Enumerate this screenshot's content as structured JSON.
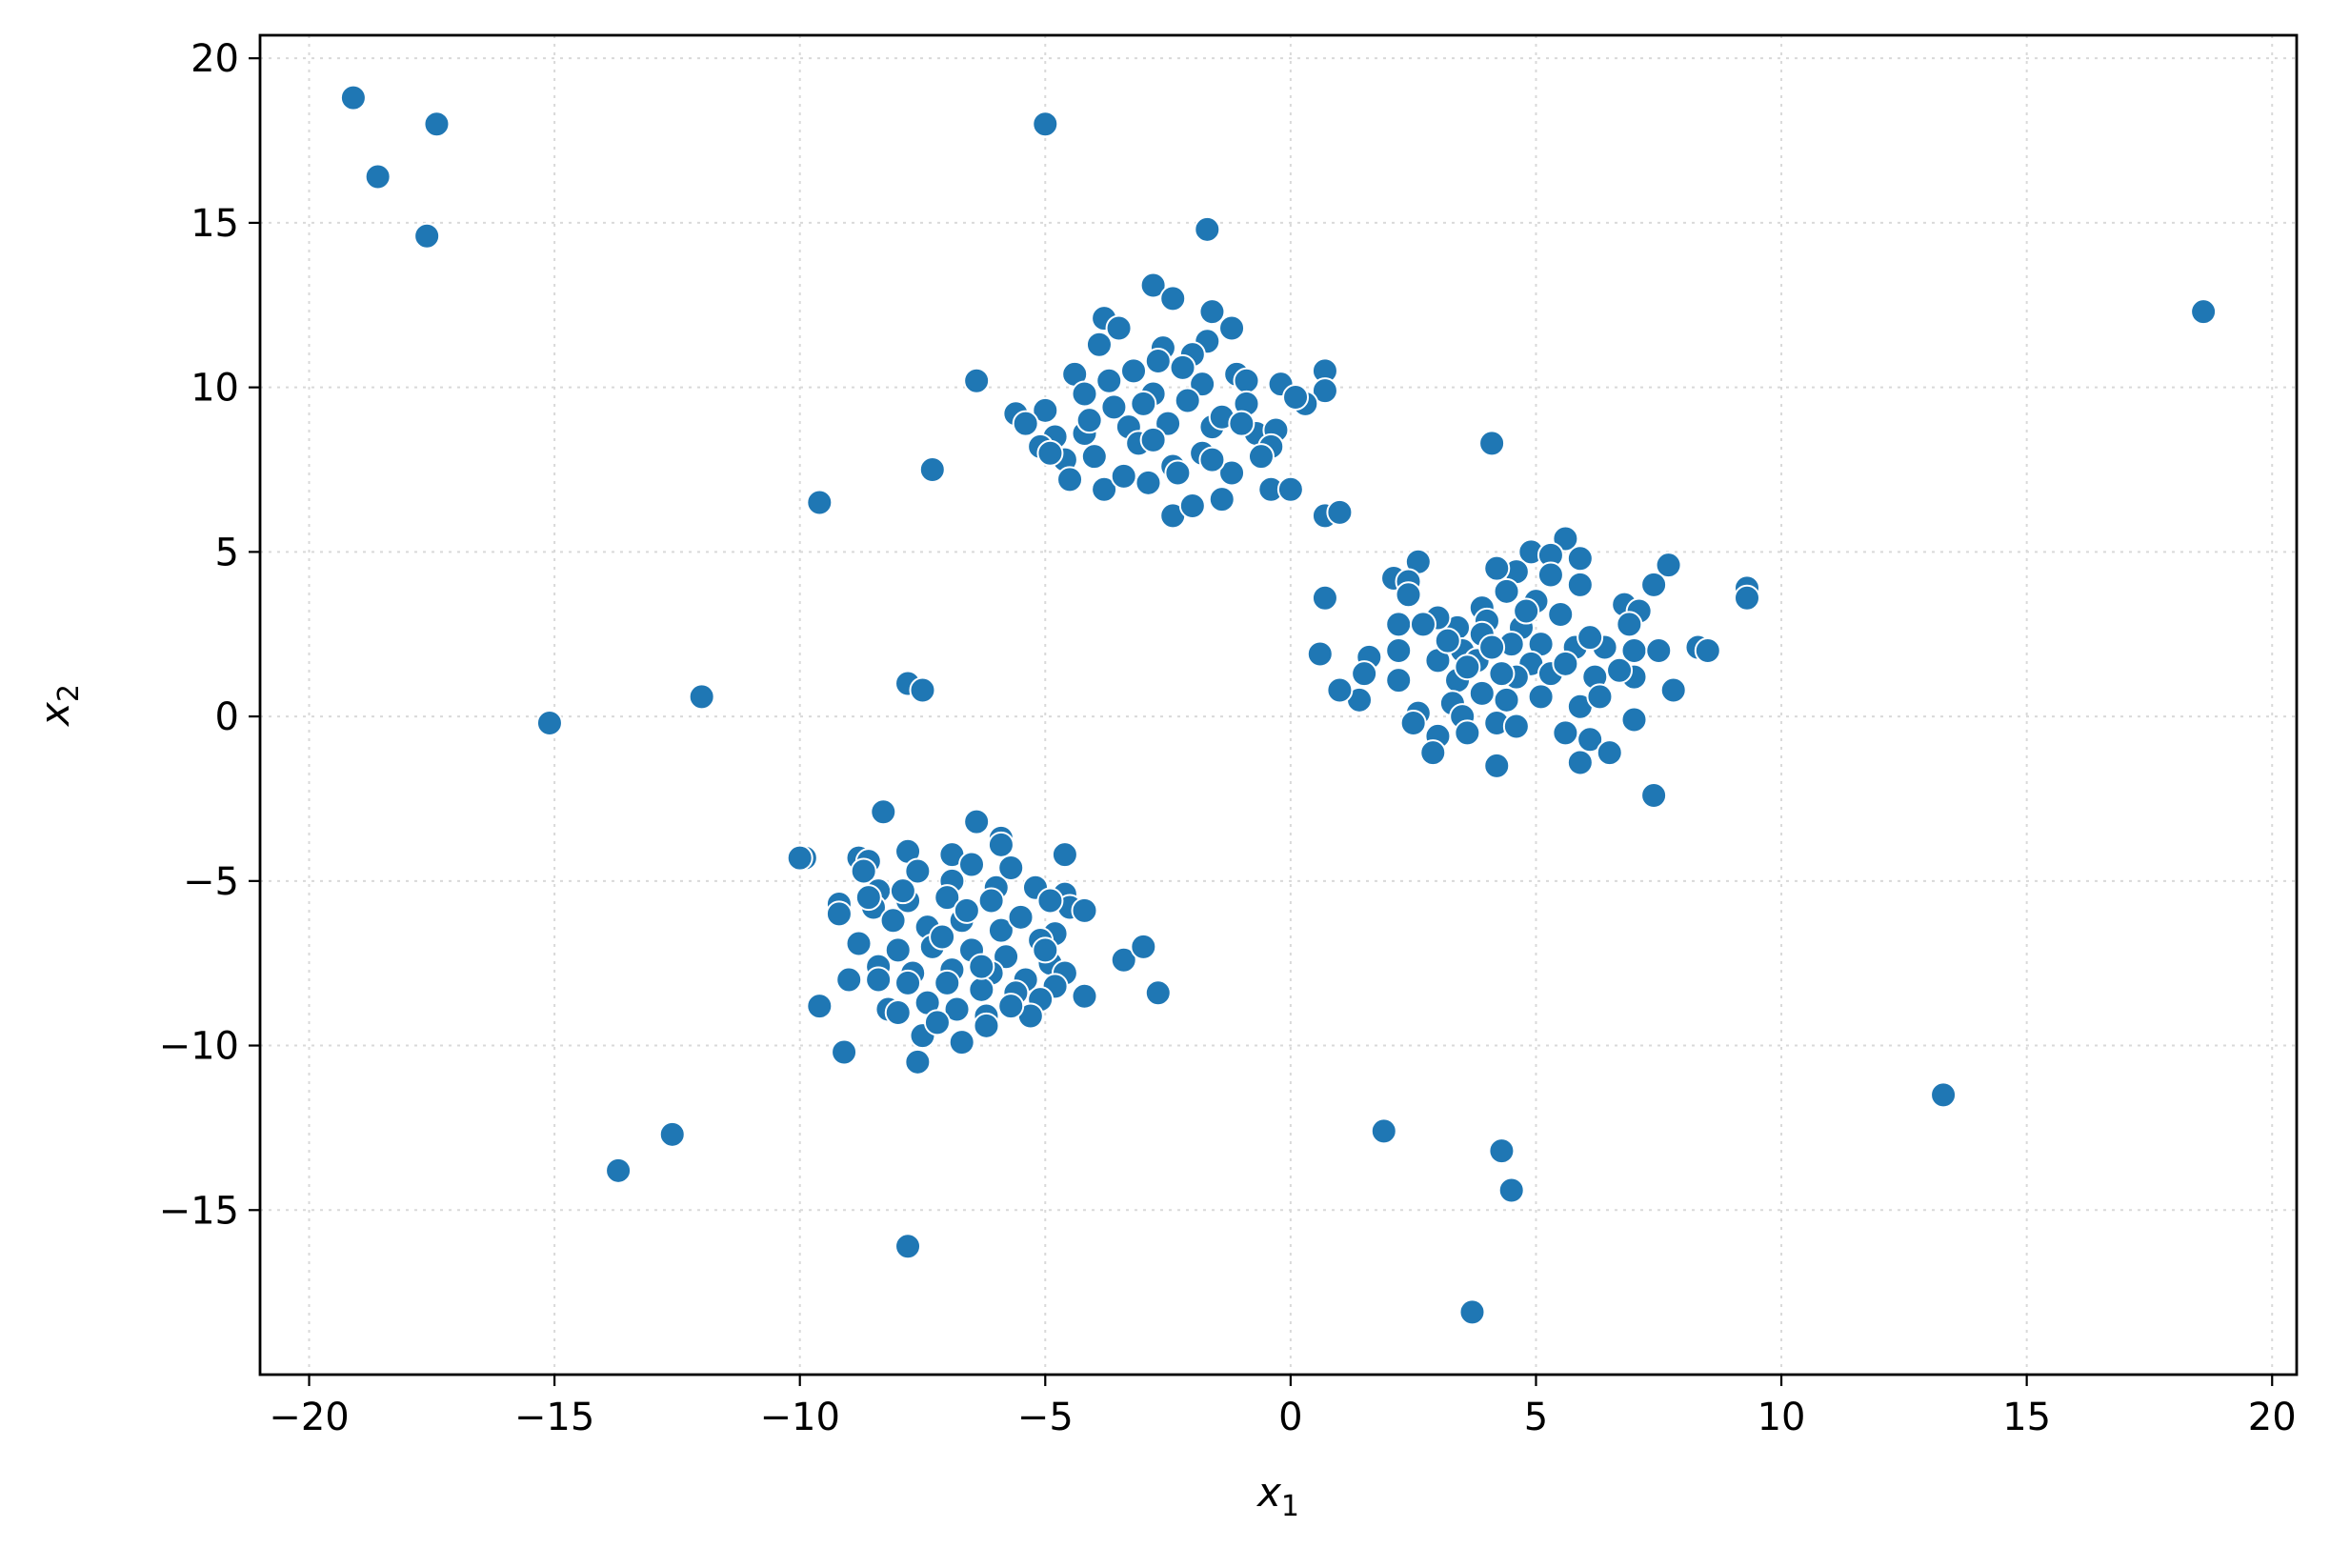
{
  "chart_data": {
    "type": "scatter",
    "title": "",
    "xlabel": {
      "base": "x",
      "sub": "1"
    },
    "ylabel": {
      "base": "x",
      "sub": "2"
    },
    "xlim": [
      -21,
      20.5
    ],
    "ylim": [
      -20,
      20.7
    ],
    "xticks": [
      -20,
      -15,
      -10,
      -5,
      0,
      5,
      10,
      15,
      20
    ],
    "yticks": [
      -15,
      -10,
      -5,
      0,
      5,
      10,
      15,
      20
    ],
    "xtick_labels": [
      "−20",
      "−15",
      "−10",
      "−5",
      "0",
      "5",
      "10",
      "15",
      "20"
    ],
    "ytick_labels": [
      "−15",
      "−10",
      "−5",
      "0",
      "5",
      "10",
      "15",
      "20"
    ],
    "grid": true,
    "marker_color": "#1f77b4",
    "points": [
      [
        -19.1,
        18.8
      ],
      [
        -18.6,
        16.4
      ],
      [
        -17.4,
        18.0
      ],
      [
        -17.6,
        14.6
      ],
      [
        -5.0,
        18.0
      ],
      [
        -1.7,
        14.8
      ],
      [
        18.6,
        12.3
      ],
      [
        -6.4,
        10.2
      ],
      [
        -9.6,
        6.5
      ],
      [
        -7.3,
        7.5
      ],
      [
        4.1,
        8.3
      ],
      [
        -15.1,
        -0.2
      ],
      [
        -12.0,
        0.6
      ],
      [
        -7.8,
        1.0
      ],
      [
        -7.5,
        0.8
      ],
      [
        -9.9,
        -4.3
      ],
      [
        -10.0,
        -4.3
      ],
      [
        -9.6,
        -8.8
      ],
      [
        -9.1,
        -10.2
      ],
      [
        -7.6,
        -10.5
      ],
      [
        -7.8,
        -16.1
      ],
      [
        -3.4,
        -7.4
      ],
      [
        -3.0,
        -7.0
      ],
      [
        -2.7,
        -8.4
      ],
      [
        -4.2,
        -8.5
      ],
      [
        -13.7,
        -13.8
      ],
      [
        -12.6,
        -12.7
      ],
      [
        1.9,
        -12.6
      ],
      [
        4.3,
        -13.2
      ],
      [
        4.5,
        -14.4
      ],
      [
        3.7,
        -18.1
      ],
      [
        13.3,
        -11.5
      ],
      [
        7.4,
        -2.4
      ],
      [
        9.3,
        3.9
      ],
      [
        9.3,
        3.6
      ],
      [
        8.3,
        2.1
      ],
      [
        8.5,
        2.0
      ],
      [
        -2.8,
        13.1
      ],
      [
        -3.8,
        12.1
      ],
      [
        -2.4,
        12.7
      ],
      [
        -1.6,
        12.3
      ],
      [
        -1.2,
        11.8
      ],
      [
        -3.5,
        11.8
      ],
      [
        -2.6,
        11.2
      ],
      [
        -1.7,
        11.4
      ],
      [
        -3.9,
        11.3
      ],
      [
        -2.0,
        11.0
      ],
      [
        -4.4,
        10.4
      ],
      [
        -3.2,
        10.5
      ],
      [
        -2.2,
        10.6
      ],
      [
        -1.1,
        10.4
      ],
      [
        -0.9,
        10.2
      ],
      [
        -5.0,
        9.3
      ],
      [
        -4.2,
        9.8
      ],
      [
        -3.6,
        9.4
      ],
      [
        -2.8,
        9.8
      ],
      [
        -1.8,
        10.1
      ],
      [
        -0.9,
        9.5
      ],
      [
        -0.2,
        10.1
      ],
      [
        0.7,
        10.5
      ],
      [
        0.7,
        9.9
      ],
      [
        0.3,
        9.5
      ],
      [
        0.1,
        9.7
      ],
      [
        -5.6,
        9.2
      ],
      [
        -5.4,
        8.9
      ],
      [
        -4.8,
        8.5
      ],
      [
        -4.2,
        8.6
      ],
      [
        -3.3,
        8.8
      ],
      [
        -2.5,
        8.9
      ],
      [
        -1.6,
        8.8
      ],
      [
        -0.7,
        8.6
      ],
      [
        -0.3,
        8.7
      ],
      [
        -0.4,
        8.2
      ],
      [
        -5.1,
        8.2
      ],
      [
        -4.6,
        7.8
      ],
      [
        -4.0,
        7.9
      ],
      [
        -3.1,
        8.3
      ],
      [
        -2.4,
        7.6
      ],
      [
        -1.8,
        8.0
      ],
      [
        -1.2,
        7.4
      ],
      [
        -0.6,
        7.9
      ],
      [
        -4.5,
        7.2
      ],
      [
        -3.8,
        6.9
      ],
      [
        -2.9,
        7.1
      ],
      [
        -2.3,
        7.4
      ],
      [
        -1.4,
        6.6
      ],
      [
        -0.4,
        6.9
      ],
      [
        0.0,
        6.9
      ],
      [
        -2.4,
        6.1
      ],
      [
        -2.0,
        6.4
      ],
      [
        0.7,
        6.1
      ],
      [
        1.0,
        6.2
      ],
      [
        -4.9,
        8.0
      ],
      [
        -3.0,
        9.5
      ],
      [
        -1.4,
        9.1
      ],
      [
        -2.1,
        9.6
      ],
      [
        -3.7,
        10.2
      ],
      [
        -2.7,
        10.8
      ],
      [
        -4.1,
        9.0
      ],
      [
        -1.0,
        8.9
      ],
      [
        -2.8,
        8.4
      ],
      [
        -1.6,
        7.8
      ],
      [
        -3.4,
        7.3
      ],
      [
        5.6,
        5.4
      ],
      [
        4.9,
        5.0
      ],
      [
        5.3,
        4.9
      ],
      [
        5.9,
        4.8
      ],
      [
        4.6,
        4.4
      ],
      [
        4.2,
        4.5
      ],
      [
        2.6,
        4.7
      ],
      [
        2.1,
        4.2
      ],
      [
        2.4,
        4.1
      ],
      [
        7.7,
        4.6
      ],
      [
        7.4,
        4.0
      ],
      [
        5.9,
        4.0
      ],
      [
        5.3,
        4.3
      ],
      [
        2.4,
        3.7
      ],
      [
        4.4,
        3.8
      ],
      [
        3.9,
        3.3
      ],
      [
        5.0,
        3.5
      ],
      [
        4.0,
        2.9
      ],
      [
        3.4,
        2.7
      ],
      [
        3.0,
        3.0
      ],
      [
        2.2,
        2.8
      ],
      [
        2.7,
        2.8
      ],
      [
        4.7,
        2.7
      ],
      [
        5.5,
        3.1
      ],
      [
        6.8,
        3.4
      ],
      [
        7.1,
        3.2
      ],
      [
        6.9,
        2.8
      ],
      [
        5.1,
        2.2
      ],
      [
        5.8,
        2.1
      ],
      [
        6.4,
        2.1
      ],
      [
        7.0,
        2.0
      ],
      [
        7.5,
        2.0
      ],
      [
        6.1,
        2.4
      ],
      [
        3.9,
        2.5
      ],
      [
        4.5,
        2.2
      ],
      [
        3.5,
        2.0
      ],
      [
        2.2,
        2.0
      ],
      [
        3.0,
        1.7
      ],
      [
        1.6,
        1.8
      ],
      [
        0.6,
        1.9
      ],
      [
        0.7,
        3.6
      ],
      [
        3.8,
        1.7
      ],
      [
        4.9,
        1.6
      ],
      [
        4.6,
        1.2
      ],
      [
        4.3,
        1.3
      ],
      [
        5.3,
        1.3
      ],
      [
        6.2,
        1.2
      ],
      [
        7.0,
        1.2
      ],
      [
        7.8,
        0.8
      ],
      [
        3.4,
        1.1
      ],
      [
        3.9,
        0.7
      ],
      [
        4.4,
        0.5
      ],
      [
        5.1,
        0.6
      ],
      [
        5.9,
        0.3
      ],
      [
        2.2,
        1.1
      ],
      [
        1.5,
        1.3
      ],
      [
        1.4,
        0.5
      ],
      [
        1.0,
        0.8
      ],
      [
        2.6,
        0.1
      ],
      [
        3.3,
        0.4
      ],
      [
        3.5,
        0.0
      ],
      [
        4.2,
        -0.2
      ],
      [
        2.5,
        -0.2
      ],
      [
        3.0,
        -0.6
      ],
      [
        3.6,
        -0.5
      ],
      [
        4.6,
        -0.3
      ],
      [
        5.6,
        -0.5
      ],
      [
        6.1,
        -0.7
      ],
      [
        6.5,
        -1.1
      ],
      [
        7.0,
        -0.1
      ],
      [
        5.9,
        -1.4
      ],
      [
        4.2,
        -1.5
      ],
      [
        2.9,
        -1.1
      ],
      [
        4.1,
        2.1
      ],
      [
        5.6,
        1.6
      ],
      [
        6.3,
        0.6
      ],
      [
        3.2,
        2.3
      ],
      [
        4.8,
        3.2
      ],
      [
        6.7,
        1.4
      ],
      [
        3.6,
        1.5
      ],
      [
        -8.3,
        -2.9
      ],
      [
        -6.4,
        -3.2
      ],
      [
        -5.9,
        -3.7
      ],
      [
        -5.9,
        -3.9
      ],
      [
        -7.8,
        -4.1
      ],
      [
        -6.9,
        -4.2
      ],
      [
        -4.6,
        -4.2
      ],
      [
        -8.8,
        -4.3
      ],
      [
        -8.6,
        -4.4
      ],
      [
        -8.7,
        -4.7
      ],
      [
        -7.6,
        -4.7
      ],
      [
        -6.5,
        -4.5
      ],
      [
        -5.7,
        -4.6
      ],
      [
        -6.9,
        -5.0
      ],
      [
        -6.0,
        -5.2
      ],
      [
        -5.2,
        -5.2
      ],
      [
        -4.6,
        -5.4
      ],
      [
        -4.5,
        -5.8
      ],
      [
        -8.4,
        -5.3
      ],
      [
        -9.2,
        -5.7
      ],
      [
        -9.2,
        -6.0
      ],
      [
        -8.5,
        -5.8
      ],
      [
        -7.8,
        -5.6
      ],
      [
        -7.0,
        -5.5
      ],
      [
        -6.1,
        -5.6
      ],
      [
        -5.5,
        -6.1
      ],
      [
        -4.8,
        -6.6
      ],
      [
        -4.2,
        -5.9
      ],
      [
        -8.1,
        -6.2
      ],
      [
        -7.4,
        -6.4
      ],
      [
        -6.7,
        -6.2
      ],
      [
        -5.9,
        -6.5
      ],
      [
        -5.1,
        -6.8
      ],
      [
        -8.8,
        -6.9
      ],
      [
        -8.0,
        -7.1
      ],
      [
        -7.3,
        -7.0
      ],
      [
        -6.5,
        -7.1
      ],
      [
        -5.8,
        -7.3
      ],
      [
        -4.9,
        -7.5
      ],
      [
        -4.6,
        -7.8
      ],
      [
        -8.4,
        -7.6
      ],
      [
        -7.7,
        -7.8
      ],
      [
        -6.9,
        -7.7
      ],
      [
        -6.1,
        -7.8
      ],
      [
        -5.4,
        -8.0
      ],
      [
        -4.8,
        -8.2
      ],
      [
        -9.0,
        -8.0
      ],
      [
        -8.4,
        -8.0
      ],
      [
        -7.8,
        -8.1
      ],
      [
        -7.0,
        -8.1
      ],
      [
        -6.3,
        -8.3
      ],
      [
        -5.6,
        -8.4
      ],
      [
        -5.1,
        -8.6
      ],
      [
        -7.4,
        -8.7
      ],
      [
        -6.8,
        -8.9
      ],
      [
        -6.2,
        -9.1
      ],
      [
        -5.3,
        -9.1
      ],
      [
        -8.2,
        -8.9
      ],
      [
        -7.5,
        -9.7
      ],
      [
        -6.7,
        -9.9
      ],
      [
        -6.2,
        -9.4
      ],
      [
        -7.2,
        -9.3
      ],
      [
        -8.0,
        -9.0
      ],
      [
        -5.7,
        -8.8
      ],
      [
        -6.6,
        -5.9
      ],
      [
        -7.9,
        -5.3
      ],
      [
        -5.5,
        -6.1
      ],
      [
        -4.9,
        -5.6
      ],
      [
        -7.1,
        -6.7
      ],
      [
        -6.3,
        -7.6
      ],
      [
        -8.6,
        -5.5
      ],
      [
        -5.0,
        -7.1
      ]
    ]
  }
}
